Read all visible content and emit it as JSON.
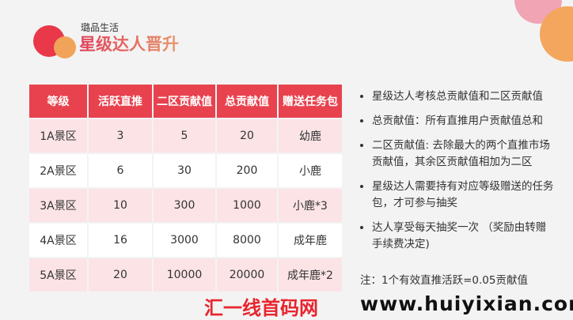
{
  "header": {
    "brand": "璐品生活",
    "title": "星级达人晋升"
  },
  "table": {
    "headers": [
      "等级",
      "活跃直推",
      "二区贡献值",
      "总贡献值",
      "赠送任务包"
    ],
    "rows": [
      [
        "1A景区",
        "3",
        "5",
        "20",
        "幼鹿"
      ],
      [
        "2A景区",
        "6",
        "30",
        "200",
        "小鹿"
      ],
      [
        "3A景区",
        "10",
        "300",
        "1000",
        "小鹿*3"
      ],
      [
        "4A景区",
        "16",
        "3000",
        "8000",
        "成年鹿"
      ],
      [
        "5A景区",
        "20",
        "10000",
        "20000",
        "成年鹿*2"
      ]
    ]
  },
  "notes": [
    "星级达人考核总贡献值和二区贡献值",
    "总贡献值：所有直推用户贡献值总和",
    "二区贡献值: 去除最大的两个直推市场贡献值，其余区贡献值相加为二区",
    "星级达人需要持有对应等级赠送的任务包，才可参与抽奖",
    "达人享受每天抽奖一次 （奖励由转赠手续费决定)"
  ],
  "footnote": "注：1个有效直推活跃=0.05贡献值",
  "watermark": {
    "cn": "汇一线首码网",
    "url": "www.huiyixian.com"
  }
}
